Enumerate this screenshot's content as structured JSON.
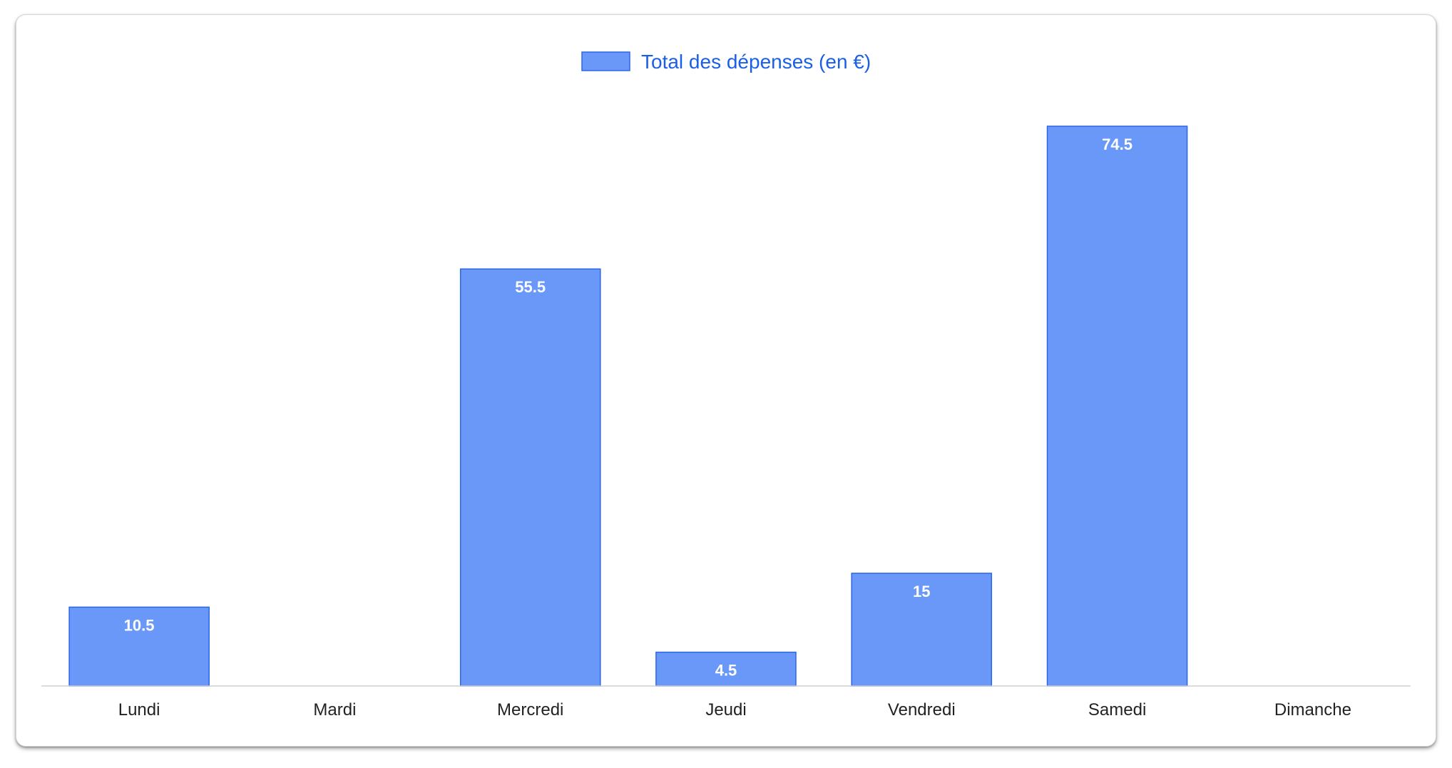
{
  "chart_data": {
    "type": "bar",
    "categories": [
      "Lundi",
      "Mardi",
      "Mercredi",
      "Jeudi",
      "Vendredi",
      "Samedi",
      "Dimanche"
    ],
    "series": [
      {
        "name": "Total des dépenses (en €)",
        "values": [
          10.5,
          0,
          55.5,
          4.5,
          15,
          74.5,
          0
        ],
        "value_labels": [
          "10.5",
          "",
          "55.5",
          "4.5",
          "15",
          "74.5",
          ""
        ]
      }
    ],
    "ylim": [
      0,
      74.5
    ],
    "grid": false,
    "legend_position": "top-center",
    "data_labels": "inside-top"
  },
  "colors": {
    "bar_fill": "#6a98f8",
    "bar_stroke": "#2c66e8",
    "legend_text": "#1a5fe6",
    "axis_line": "#d0d0d0"
  }
}
